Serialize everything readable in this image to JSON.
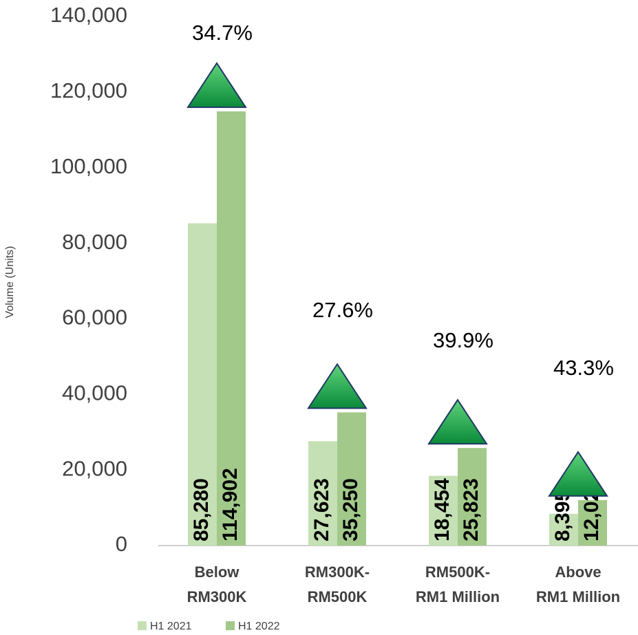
{
  "chart_data": {
    "type": "bar",
    "y_axis_label": "Volume (Units)",
    "categories": [
      [
        "Below",
        "RM300K"
      ],
      [
        "RM300K-",
        "RM500K"
      ],
      [
        "RM500K-",
        "RM1 Million"
      ],
      [
        "Above",
        "RM1 Million"
      ]
    ],
    "series": [
      {
        "name": "H1 2021",
        "color": "#c5e0b4",
        "values": [
          85280,
          27623,
          18454,
          8395
        ],
        "value_labels": [
          "85,280",
          "27,623",
          "18,454",
          "8,395"
        ]
      },
      {
        "name": "H1 2022",
        "color": "#a2c98a",
        "values": [
          114902,
          35250,
          25823,
          12027
        ],
        "value_labels": [
          "114,902",
          "35,250",
          "25,823",
          "12,027"
        ]
      }
    ],
    "growth_labels": [
      "34.7%",
      "27.6%",
      "39.9%",
      "43.3%"
    ],
    "ylim": [
      0,
      140000
    ],
    "yticks": [
      0,
      {
        "value": 20000,
        "label": "20,000"
      },
      {
        "value": 40000,
        "label": "40,000"
      },
      {
        "value": 60000,
        "label": "60,000"
      },
      {
        "value": 80000,
        "label": "80,000"
      },
      {
        "value": 100000,
        "label": "100,000"
      },
      {
        "value": 120000,
        "label": "120,000"
      },
      {
        "value": 140000,
        "label": "140,000"
      }
    ],
    "grid": false,
    "legend": "bottom-left"
  }
}
